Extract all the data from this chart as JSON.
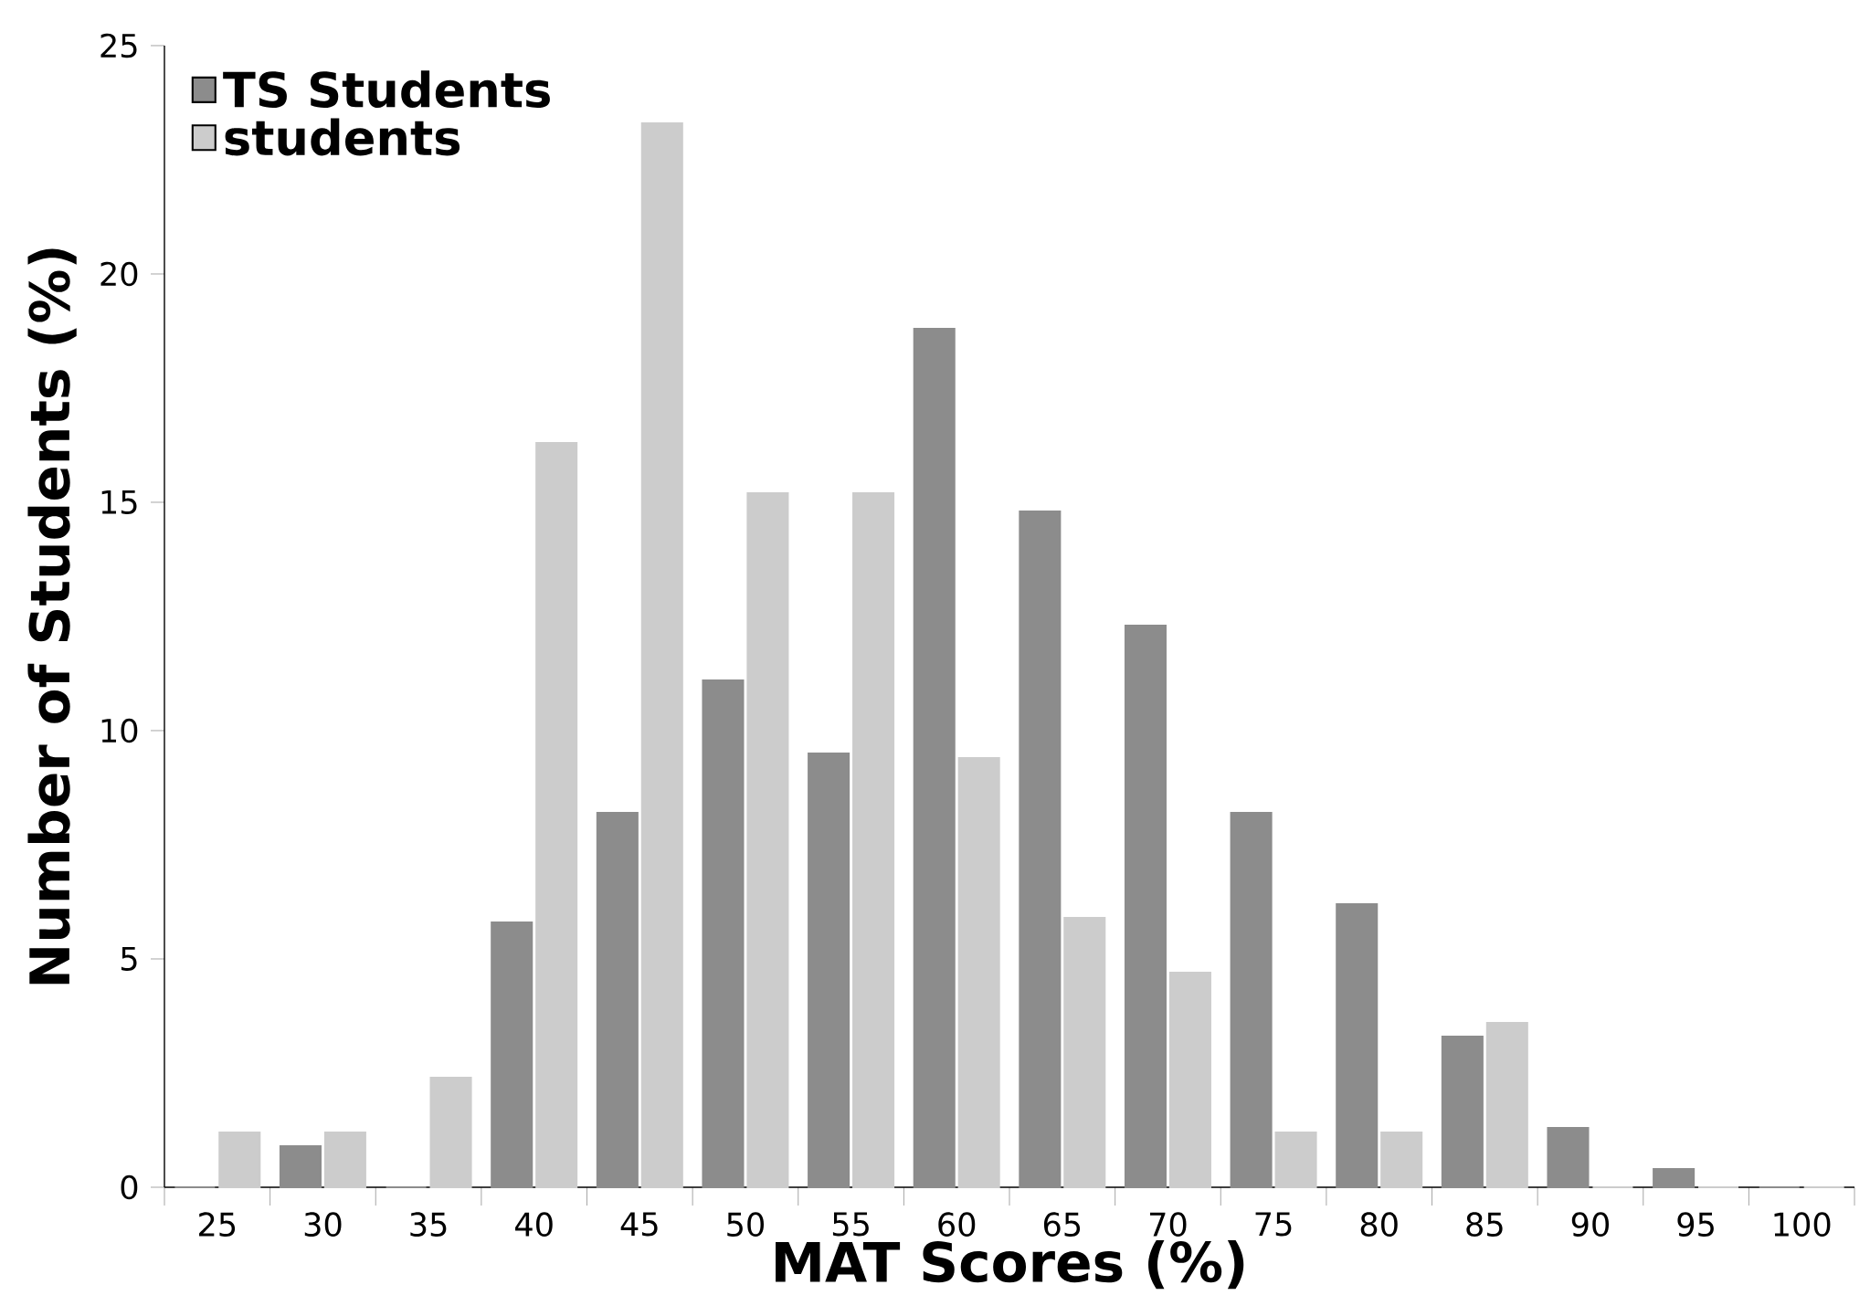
{
  "chart_data": {
    "type": "bar",
    "xlabel": "MAT Scores (%)",
    "ylabel": "Number of Students (%)",
    "categories": [
      "25",
      "30",
      "35",
      "40",
      "45",
      "50",
      "55",
      "60",
      "65",
      "70",
      "75",
      "80",
      "85",
      "90",
      "95",
      "100"
    ],
    "series": [
      {
        "name": "TS Students",
        "color": "#8c8c8c",
        "values": [
          0,
          0.9,
          0,
          5.8,
          8.2,
          11.1,
          9.5,
          18.8,
          14.8,
          12.3,
          8.2,
          6.2,
          3.3,
          1.3,
          0.4,
          0
        ]
      },
      {
        "name": "students",
        "color": "#cccccc",
        "values": [
          1.2,
          1.2,
          2.4,
          16.3,
          23.3,
          15.2,
          15.2,
          9.4,
          5.9,
          4.7,
          1.2,
          1.2,
          3.6,
          0,
          0,
          0
        ]
      }
    ],
    "ylim": [
      0,
      25
    ],
    "yticks": [
      0,
      5,
      10,
      15,
      20,
      25
    ],
    "legend": "top left",
    "grid": false
  }
}
